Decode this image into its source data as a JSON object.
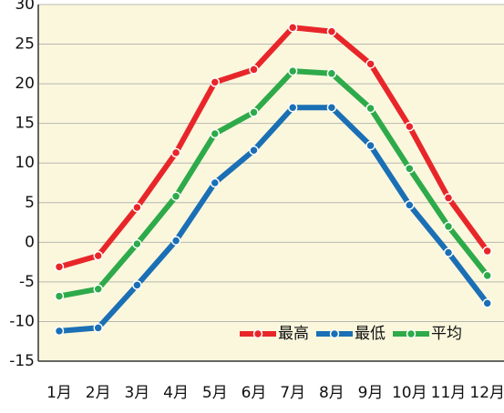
{
  "chart_data": {
    "type": "line",
    "categories": [
      "1月",
      "2月",
      "3月",
      "4月",
      "5月",
      "6月",
      "7月",
      "8月",
      "9月",
      "10月",
      "11月",
      "12月"
    ],
    "series": [
      {
        "name": "最高",
        "color": "#e8262a",
        "values": [
          -3.1,
          -1.7,
          4.4,
          11.3,
          20.2,
          21.8,
          27.1,
          26.6,
          22.5,
          14.6,
          5.6,
          -1.1
        ]
      },
      {
        "name": "最低",
        "color": "#1a6fb5",
        "values": [
          -11.2,
          -10.8,
          -5.4,
          0.2,
          7.5,
          11.6,
          17.0,
          17.0,
          12.2,
          4.7,
          -1.3,
          -7.7
        ]
      },
      {
        "name": "平均",
        "color": "#2eaa4a",
        "values": [
          -6.8,
          -5.9,
          -0.2,
          5.8,
          13.7,
          16.4,
          21.6,
          21.3,
          16.9,
          9.3,
          2.0,
          -4.2
        ]
      }
    ],
    "ylim": [
      -15,
      30
    ],
    "yticks": [
      -15,
      -10,
      -5,
      0,
      5,
      10,
      15,
      20,
      25,
      30
    ],
    "grid": true,
    "legend": "bottom-right"
  }
}
